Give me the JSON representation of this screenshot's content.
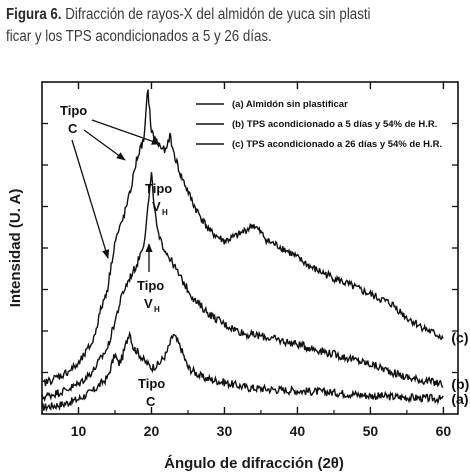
{
  "caption": {
    "label": "Figura 6.",
    "line1": " Difracción de rayos-X del almidón de yuca sin plasti",
    "line2": "ficar y los TPS acondicionados a 5 y 26 días."
  },
  "chart_data": {
    "type": "line",
    "title": "",
    "xlabel": "Ángulo de difracción (2θ)",
    "ylabel": "Intensidad (U. A)",
    "xlim": [
      5,
      62
    ],
    "ylim": [
      0,
      100
    ],
    "xticks": [
      10,
      20,
      30,
      40,
      50,
      60
    ],
    "grid": false,
    "legend_position": "top-right",
    "series": [
      {
        "name": "(a) Almidón sin plastificar",
        "end_label": "(a)",
        "points": [
          [
            5,
            2
          ],
          [
            8,
            3
          ],
          [
            10,
            4.5
          ],
          [
            12,
            7
          ],
          [
            14,
            11
          ],
          [
            15,
            18
          ],
          [
            15.5,
            15
          ],
          [
            16,
            17
          ],
          [
            17,
            25
          ],
          [
            17.5,
            20
          ],
          [
            18,
            19
          ],
          [
            19,
            16
          ],
          [
            20,
            14
          ],
          [
            21,
            15
          ],
          [
            22,
            18
          ],
          [
            23,
            24
          ],
          [
            24,
            20
          ],
          [
            25,
            14
          ],
          [
            27,
            11
          ],
          [
            30,
            9.5
          ],
          [
            33,
            8
          ],
          [
            36,
            7.5
          ],
          [
            40,
            7
          ],
          [
            45,
            6.5
          ],
          [
            50,
            5.5
          ],
          [
            55,
            5
          ],
          [
            60,
            4.5
          ]
        ]
      },
      {
        "name": "(b) TPS acondicionado a 5 días y 54% de H.R.",
        "end_label": "(b)",
        "points": [
          [
            5,
            5
          ],
          [
            8,
            7
          ],
          [
            10,
            9
          ],
          [
            12,
            13
          ],
          [
            14,
            20
          ],
          [
            15,
            28
          ],
          [
            16,
            36
          ],
          [
            17,
            41
          ],
          [
            18,
            45
          ],
          [
            19,
            52
          ],
          [
            19.5,
            62
          ],
          [
            20,
            72
          ],
          [
            20.5,
            60
          ],
          [
            21,
            53
          ],
          [
            22,
            49
          ],
          [
            23,
            45
          ],
          [
            24,
            41
          ],
          [
            26,
            34
          ],
          [
            28,
            30
          ],
          [
            30,
            27
          ],
          [
            33,
            24
          ],
          [
            35,
            23.5
          ],
          [
            38,
            22
          ],
          [
            40,
            21
          ],
          [
            45,
            18
          ],
          [
            50,
            15
          ],
          [
            55,
            11
          ],
          [
            60,
            9
          ]
        ]
      },
      {
        "name": "(c) TPS acondicionado a 26 días y 54% de H.R.",
        "end_label": "(c)",
        "points": [
          [
            5,
            9
          ],
          [
            8,
            12
          ],
          [
            10,
            15
          ],
          [
            12,
            22
          ],
          [
            13,
            31
          ],
          [
            14,
            38
          ],
          [
            14.5,
            45
          ],
          [
            15,
            52
          ],
          [
            16,
            58
          ],
          [
            17,
            66
          ],
          [
            18,
            77
          ],
          [
            19,
            83
          ],
          [
            19.5,
            98
          ],
          [
            20,
            85
          ],
          [
            21,
            81
          ],
          [
            22,
            79
          ],
          [
            22.5,
            84
          ],
          [
            23,
            79
          ],
          [
            24,
            72
          ],
          [
            26,
            62
          ],
          [
            28,
            55
          ],
          [
            30,
            52
          ],
          [
            32,
            54
          ],
          [
            34,
            57
          ],
          [
            36,
            52
          ],
          [
            38,
            50
          ],
          [
            40,
            47
          ],
          [
            42,
            44
          ],
          [
            45,
            41
          ],
          [
            48,
            38
          ],
          [
            50,
            36
          ],
          [
            53,
            33
          ],
          [
            55,
            29
          ],
          [
            58,
            25
          ],
          [
            60,
            23
          ]
        ]
      }
    ],
    "annotations": [
      {
        "text": "Tipo",
        "text2": "C"
      },
      {
        "text": "Tipo",
        "text2": "V",
        "sub": "H"
      },
      {
        "text": "Tipo",
        "text2": "V",
        "sub": "H"
      },
      {
        "text": "Tipo",
        "text2": "C"
      }
    ]
  }
}
